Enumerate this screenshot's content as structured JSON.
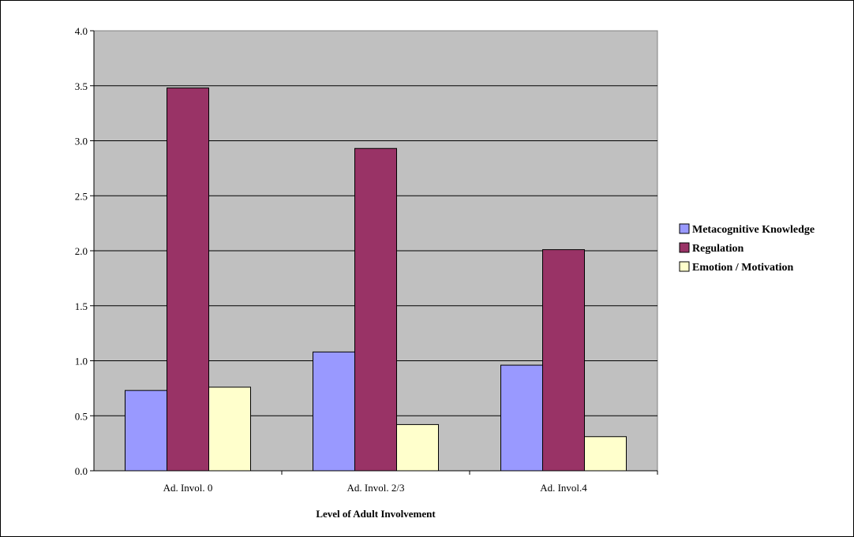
{
  "chart_data": {
    "type": "bar",
    "title": "",
    "xlabel": "Level of Adult Involvement",
    "ylabel": "",
    "ylim": [
      0,
      4
    ],
    "yticks": [
      "0.0",
      "0.5",
      "1.0",
      "1.5",
      "2.0",
      "2.5",
      "3.0",
      "3.5",
      "4.0"
    ],
    "categories": [
      "Ad. Invol. 0",
      "Ad. Invol. 2/3",
      "Ad. Invol.4"
    ],
    "series": [
      {
        "name": "Metacognitive Knowledge",
        "color": "#9999ff",
        "values": [
          0.73,
          1.08,
          0.96
        ]
      },
      {
        "name": "Regulation",
        "color": "#993366",
        "values": [
          3.48,
          2.93,
          2.01
        ]
      },
      {
        "name": "Emotion / Motivation",
        "color": "#ffffcc",
        "values": [
          0.76,
          0.42,
          0.31
        ]
      }
    ],
    "grid": true,
    "plot_background": "#c0c0c0",
    "legend_position": "right"
  }
}
